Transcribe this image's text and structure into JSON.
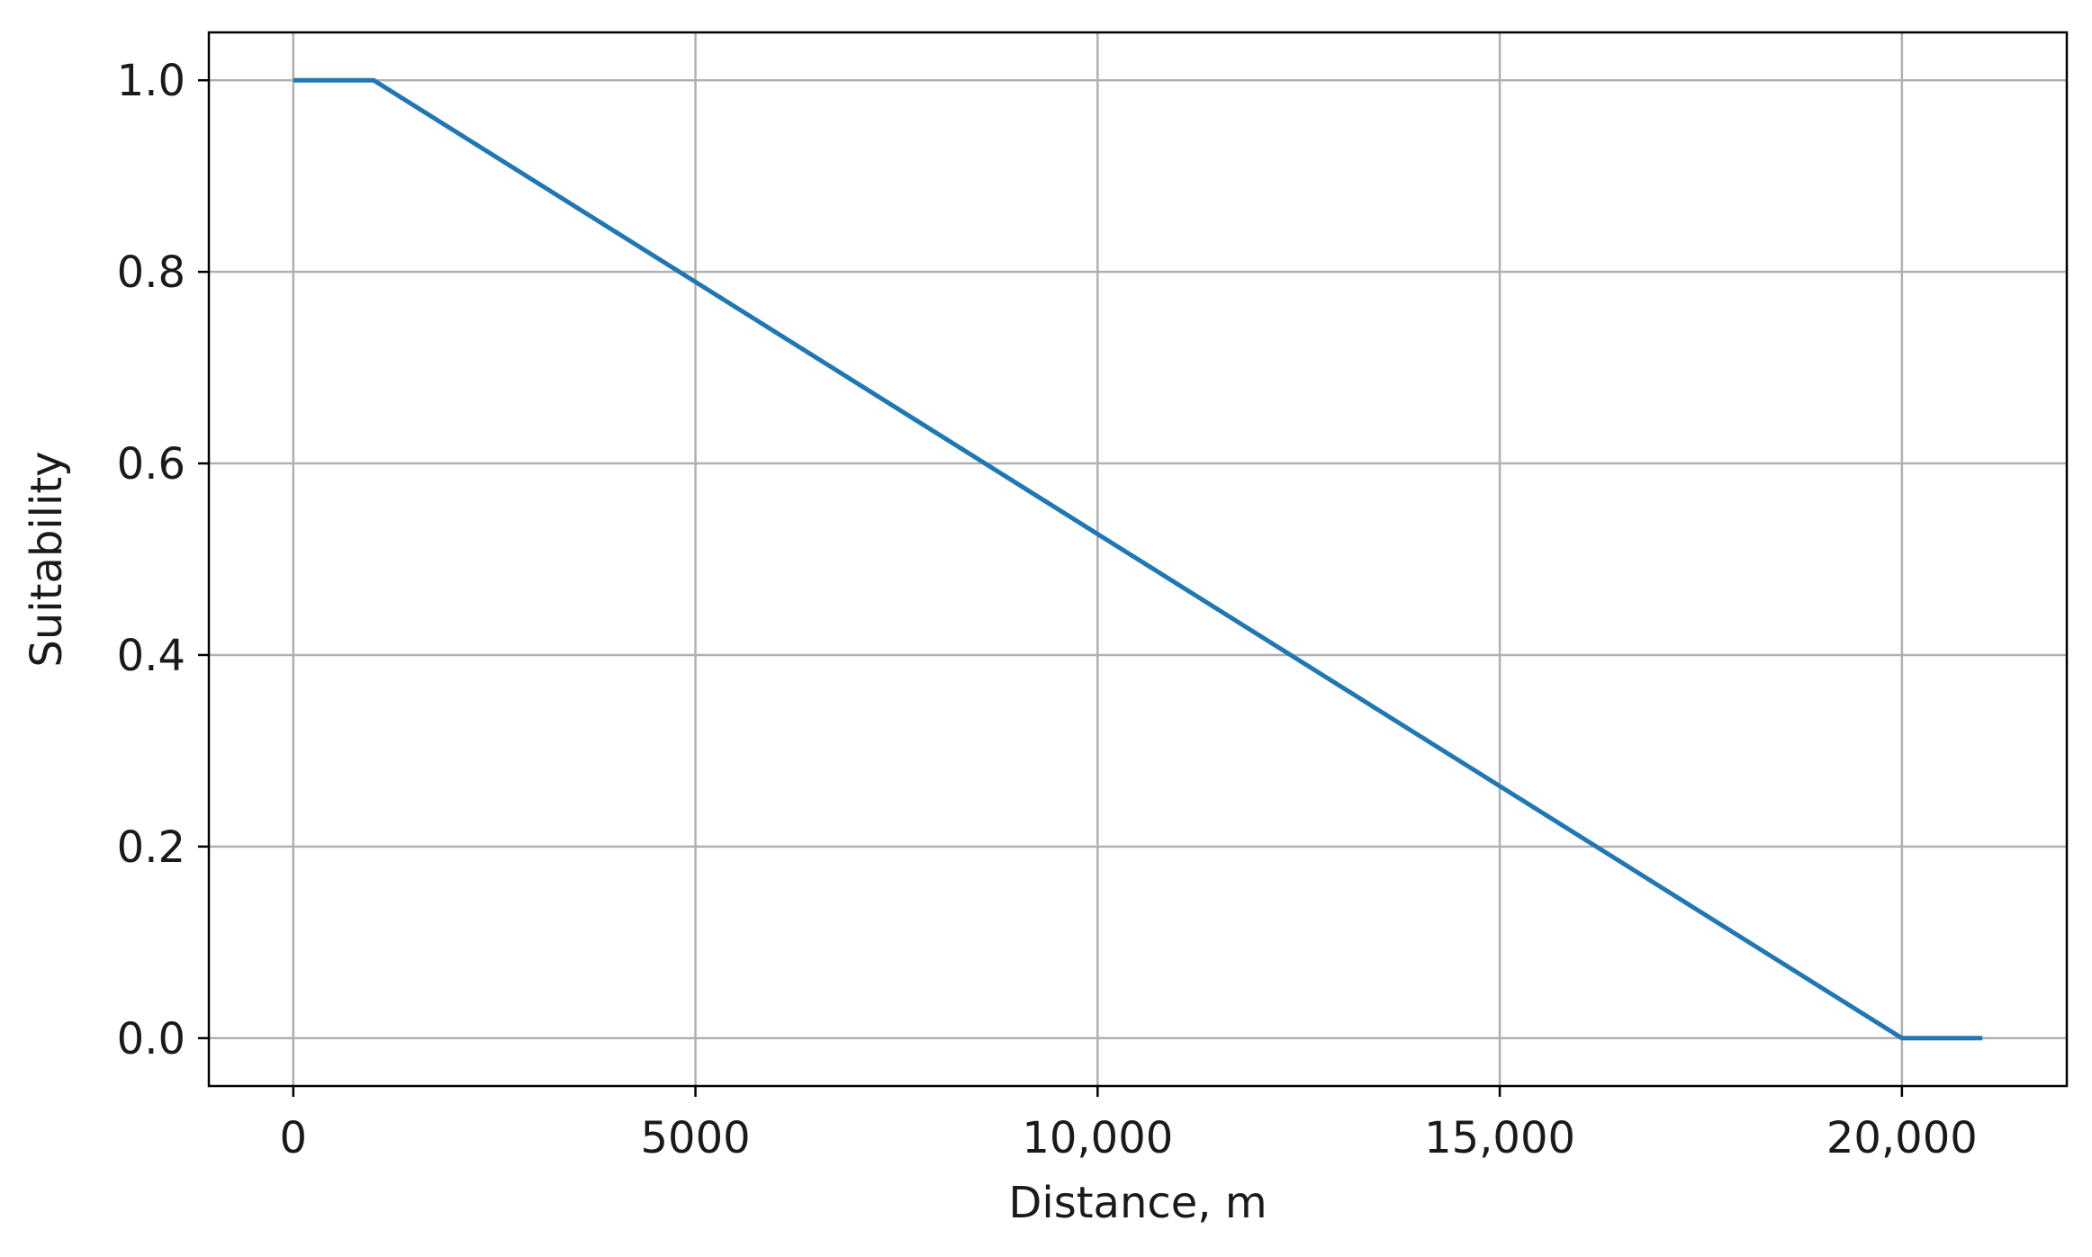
{
  "chart_data": {
    "type": "line",
    "xlabel": "Distance, m",
    "ylabel": "Suitability",
    "xlim": [
      -1050,
      22050
    ],
    "ylim": [
      -0.05,
      1.05
    ],
    "xticks": [
      0,
      5000,
      10000,
      15000,
      20000
    ],
    "xtick_labels": [
      "0",
      "5000",
      "10,000",
      "15,000",
      "20,000"
    ],
    "yticks": [
      0.0,
      0.2,
      0.4,
      0.6,
      0.8,
      1.0
    ],
    "ytick_labels": [
      "0.0",
      "0.2",
      "0.4",
      "0.6",
      "0.8",
      "1.0"
    ],
    "grid": true,
    "series": [
      {
        "color": "#1f77b4",
        "x": [
          0,
          1000,
          20000,
          21000
        ],
        "y": [
          1.0,
          1.0,
          0.0,
          0.0
        ]
      }
    ]
  }
}
